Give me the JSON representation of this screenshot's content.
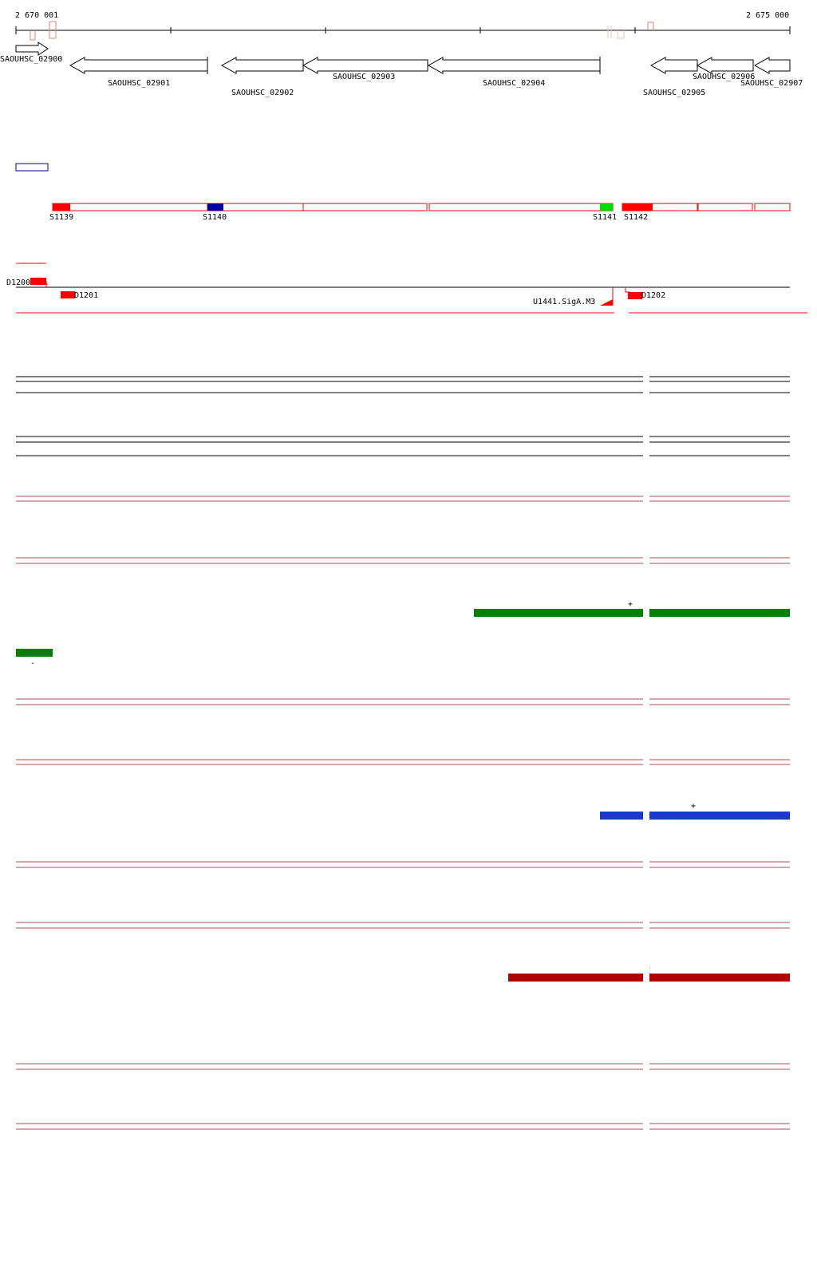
{
  "coords": {
    "start": "2 670 001",
    "end": "2 675 000"
  },
  "colors": {
    "axis": "#000000",
    "gene_fill": "#ffffff",
    "feature_red": "#ff0000",
    "feature_blue": "#0000a0",
    "feature_green": "#00dd00",
    "threshold": "#a05050",
    "green_series": "#1a9a1a",
    "blue_series": "#1a3acc",
    "red_series": "#cc2020",
    "yellow_series": "#cccc00",
    "green_bar": "#008000",
    "blue_bar": "#1a3acc",
    "red_bar": "#b00000"
  },
  "genes": [
    {
      "name": "SAOUHSC_02900",
      "strand": "+"
    },
    {
      "name": "SAOUHSC_02901",
      "strand": "-"
    },
    {
      "name": "SAOUHSC_02902",
      "strand": "-"
    },
    {
      "name": "SAOUHSC_02903",
      "strand": "-"
    },
    {
      "name": "SAOUHSC_02904",
      "strand": "-"
    },
    {
      "name": "SAOUHSC_02905",
      "strand": "-"
    },
    {
      "name": "SAOUHSC_02906",
      "strand": "-"
    },
    {
      "name": "SAOUHSC_02907",
      "strand": "-"
    }
  ],
  "segments": [
    "S1139",
    "S1140",
    "S1141",
    "S1142"
  ],
  "features": [
    "D1200",
    "D1201",
    "U1441.SigA.M3",
    "D1202"
  ],
  "bars": [
    {
      "name": "green",
      "strand": "+"
    },
    {
      "name": "green",
      "strand": "-"
    },
    {
      "name": "blue",
      "strand": "+"
    },
    {
      "name": "red",
      "strand": "+"
    }
  ]
}
